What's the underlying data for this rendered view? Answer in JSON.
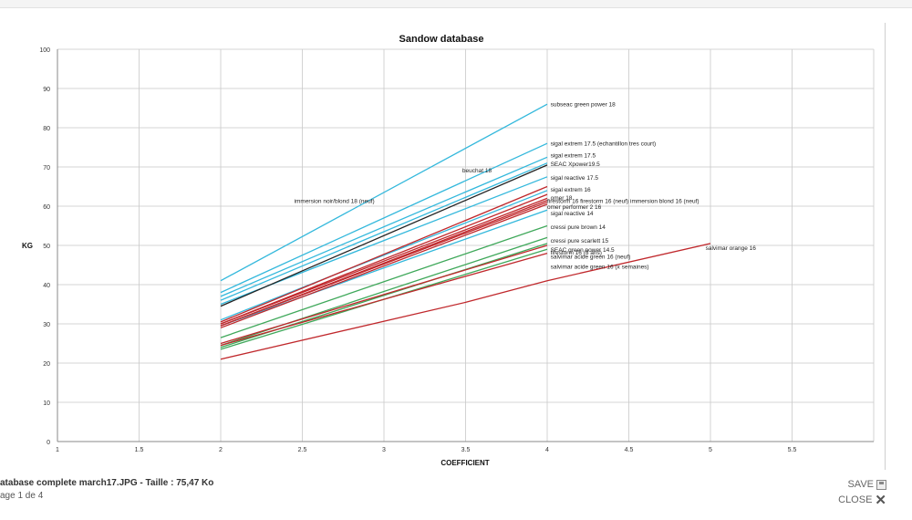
{
  "viewer": {
    "file_name": "atabase complete march17.JPG - Taille : 75,47 Ko",
    "page_info": "age 1 de 4",
    "save_label": "SAVE",
    "close_label": "CLOSE"
  },
  "colors": {
    "blue": "#33b8dc",
    "red": "#c0282c",
    "green": "#3fa85a",
    "black": "#222222",
    "grid": "#c8c8c8"
  },
  "chart_data": {
    "type": "line",
    "title": "Sandow database",
    "xlabel": "COEFFICIENT",
    "ylabel": "KG",
    "xlim": [
      1,
      6
    ],
    "ylim": [
      0,
      100
    ],
    "xticks": [
      "1",
      "1.5",
      "2",
      "2.5",
      "3",
      "3.5",
      "4",
      "4.5",
      "5",
      "5.5"
    ],
    "yticks": [
      "0",
      "10",
      "20",
      "30",
      "40",
      "50",
      "60",
      "70",
      "80",
      "90",
      "100"
    ],
    "grid": true,
    "legend": "none",
    "series": [
      {
        "name": "subseac green power 18",
        "color": "blue",
        "x": [
          2,
          4
        ],
        "y": [
          41,
          86
        ]
      },
      {
        "name": "sigal extrem 17.5 (echantillon tres court)",
        "color": "blue",
        "x": [
          2,
          4
        ],
        "y": [
          38,
          76
        ]
      },
      {
        "name": "sigal extrem 17.5",
        "color": "blue",
        "x": [
          2,
          4
        ],
        "y": [
          37,
          72.5
        ]
      },
      {
        "name": "SEAC Xpower19.5",
        "color": "blue",
        "x": [
          2,
          4
        ],
        "y": [
          36,
          71
        ]
      },
      {
        "name": "sigal reactive 17.5",
        "color": "blue",
        "x": [
          2,
          4
        ],
        "y": [
          35,
          67.5
        ]
      },
      {
        "name": "sigal extrem 16",
        "color": "blue",
        "x": [
          2,
          4
        ],
        "y": [
          31,
          64
        ]
      },
      {
        "name": "sigal reactive 14",
        "color": "blue",
        "x": [
          2,
          4
        ],
        "y": [
          29.5,
          59
        ]
      },
      {
        "name": "beuchat 18",
        "color": "black",
        "x": [
          2,
          4
        ],
        "y": [
          34.5,
          70.5
        ]
      },
      {
        "name": "immersion noir/blond 18 (neuf)",
        "color": "red",
        "x": [
          2,
          4
        ],
        "y": [
          30.5,
          65
        ]
      },
      {
        "name": "omer 18",
        "color": "red",
        "x": [
          2,
          4
        ],
        "y": [
          30,
          63
        ]
      },
      {
        "name": "firestorm 16",
        "color": "red",
        "x": [
          2,
          4
        ],
        "y": [
          30,
          62
        ]
      },
      {
        "name": "firestorm 16 (neuf)",
        "color": "red",
        "x": [
          2,
          4
        ],
        "y": [
          29.5,
          61.5
        ]
      },
      {
        "name": "immersion blond 16 (neuf)",
        "color": "red",
        "x": [
          2,
          4
        ],
        "y": [
          29.5,
          61
        ]
      },
      {
        "name": "omer performer 2 16",
        "color": "red",
        "x": [
          2,
          4
        ],
        "y": [
          29,
          60.5
        ]
      },
      {
        "name": "cressi pure brown 14",
        "color": "green",
        "x": [
          2,
          4
        ],
        "y": [
          26.5,
          55
        ]
      },
      {
        "name": "cressi pure scarlett 15",
        "color": "green",
        "x": [
          2,
          4
        ],
        "y": [
          24.5,
          52
        ]
      },
      {
        "name": "SEAC green power 14.5",
        "color": "green",
        "x": [
          2,
          4
        ],
        "y": [
          24,
          50.5
        ]
      },
      {
        "name": "firestorm 16 (3 ans)",
        "color": "red",
        "x": [
          2,
          4
        ],
        "y": [
          25,
          50
        ]
      },
      {
        "name": "salvimar acide green 16 (neuf)",
        "color": "green",
        "x": [
          2,
          4
        ],
        "y": [
          23.5,
          49
        ]
      },
      {
        "name": "salvimar acide green 16 (x semaines)",
        "color": "red",
        "x": [
          2,
          4
        ],
        "y": [
          24.5,
          48
        ]
      },
      {
        "name": "salvimar orange 16",
        "color": "red",
        "x": [
          2,
          3.5,
          4,
          5
        ],
        "y": [
          21,
          35.5,
          41,
          50.5
        ]
      }
    ],
    "annotations": [
      {
        "text": "subseac green power 18",
        "x": 4.02,
        "y": 86
      },
      {
        "text": "sigal extrem 17.5 (echantillon tres court)",
        "x": 4.02,
        "y": 76
      },
      {
        "text": "sigal extrem 17.5",
        "x": 4.02,
        "y": 73
      },
      {
        "text": "SEAC Xpower19.5",
        "x": 4.02,
        "y": 70.8
      },
      {
        "text": "beuchat 18",
        "x": 3.48,
        "y": 69.2
      },
      {
        "text": "sigal reactive 17.5",
        "x": 4.02,
        "y": 67.3
      },
      {
        "text": "sigal extrem 16",
        "x": 4.02,
        "y": 64.3
      },
      {
        "text": "omer 18",
        "x": 4.02,
        "y": 62.2
      },
      {
        "text": "immersion noir/blond 18 (neuf)",
        "x": 2.45,
        "y": 61.4
      },
      {
        "text": "firestorm 16 firestorm 16 (neuf) immersion blond 16 (neuf)",
        "x": 4.0,
        "y": 61.4
      },
      {
        "text": "omer performer 2 16",
        "x": 4.0,
        "y": 59.9
      },
      {
        "text": "sigal reactive 14",
        "x": 4.02,
        "y": 58.3
      },
      {
        "text": "cressi pure brown 14",
        "x": 4.02,
        "y": 54.8
      },
      {
        "text": "cressi pure scarlett 15",
        "x": 4.02,
        "y": 51.3
      },
      {
        "text": "SEAC green power 14.5",
        "x": 4.02,
        "y": 49.0
      },
      {
        "text": "firestorm 16 (3 ans)",
        "x": 4.02,
        "y": 48.3
      },
      {
        "text": "salvimar acide green 16 (neuf)",
        "x": 4.02,
        "y": 47.2
      },
      {
        "text": "salvimar acide green 16 (x semaines)",
        "x": 4.02,
        "y": 44.7
      },
      {
        "text": "salvimar orange 16",
        "x": 4.97,
        "y": 49.4
      }
    ]
  }
}
